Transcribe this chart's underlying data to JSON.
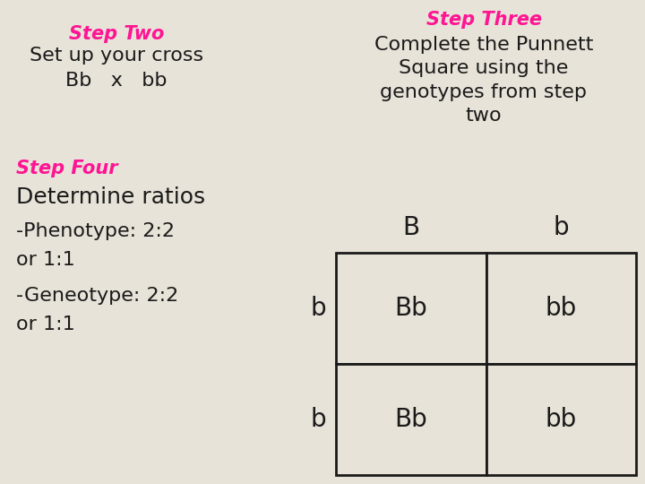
{
  "bg_color": "#e8e3d8",
  "pink_color": "#ff1493",
  "black_color": "#1a1a1a",
  "cell_color": "#e8e3d8",
  "step_two_title": "Step Two",
  "step_two_line1": "Set up your cross",
  "step_two_line2": "Bb   x   bb",
  "step_three_title": "Step Three",
  "step_three_body": "Complete the Punnett\nSquare using the\ngenotypes from step\ntwo",
  "step_four_title": "Step Four",
  "determine_ratios": "Determine ratios",
  "phenotype_line": "-Phenotype: 2:2",
  "or1": "or 1:1",
  "genotype_line": "-Geneotype: 2:2",
  "or2": "or 1:1",
  "col_headers": [
    "B",
    "b"
  ],
  "row_headers": [
    "b",
    "b"
  ],
  "cells": [
    [
      "Bb",
      "bb"
    ],
    [
      "Bb",
      "bb"
    ]
  ]
}
